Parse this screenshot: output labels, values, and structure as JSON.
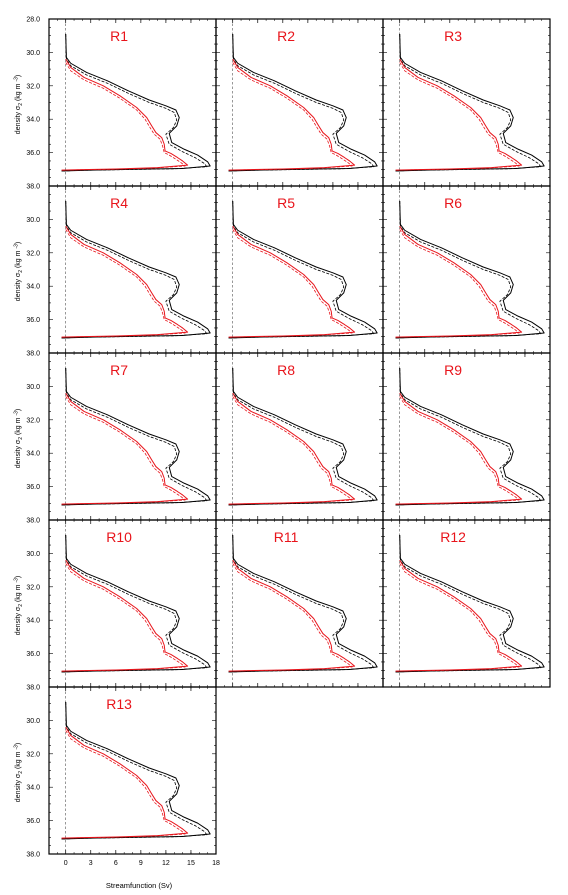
{
  "figure": {
    "xlabel": "Streamfunction (Sv)",
    "ylabel_main": "density σ",
    "ylabel_sub": "2",
    "ylabel_unit": "(kg m",
    "ylabel_exp": "-3",
    "ylabel_close": ")"
  },
  "colors": {
    "black_series": "#000000",
    "red_series": "#e8141b",
    "panel_title": "#e8141b",
    "zero_line": "#555555",
    "axis": "#000000"
  },
  "chart_data": {
    "type": "line",
    "layout": "small multiples, 5 rows x 3 columns (13 panels)",
    "panels": [
      "R1",
      "R2",
      "R3",
      "R4",
      "R5",
      "R6",
      "R7",
      "R8",
      "R9",
      "R10",
      "R11",
      "R12",
      "R13"
    ],
    "xlabel": "Streamfunction (Sv)",
    "ylabel": "density σ2 (kg m-3)",
    "xlim": [
      -2,
      18
    ],
    "ylim": [
      38.0,
      28.0
    ],
    "y_inverted": true,
    "x_ticks": [
      0,
      3,
      6,
      9,
      12,
      15,
      18
    ],
    "y_ticks": [
      28.0,
      30.0,
      32.0,
      34.0,
      36.0,
      38.0
    ],
    "y_tick_labels_first_panel": [
      "28.0",
      "30.0",
      "32.0",
      "34.0",
      "36.0",
      "38.0"
    ],
    "y_tick_labels_other_rows": [
      "",
      "30.0",
      "32.0",
      "34.0",
      "36.0",
      "38.0"
    ],
    "x_tick_labels": [
      "0",
      "3",
      "6",
      "9",
      "12",
      "15",
      "18"
    ],
    "zero_reference_line": {
      "x": 0,
      "style": "dashed"
    },
    "series": [
      {
        "color": "black",
        "style": "solid",
        "points": [
          [
            0.0,
            28.9
          ],
          [
            0.08,
            30.3
          ],
          [
            0.6,
            30.65
          ],
          [
            2.5,
            31.2
          ],
          [
            5.0,
            31.7
          ],
          [
            7.5,
            32.3
          ],
          [
            10.0,
            32.85
          ],
          [
            12.0,
            33.2
          ],
          [
            13.2,
            33.45
          ],
          [
            13.6,
            33.9
          ],
          [
            13.3,
            34.4
          ],
          [
            12.4,
            34.85
          ],
          [
            12.7,
            35.4
          ],
          [
            14.2,
            35.8
          ],
          [
            15.8,
            36.15
          ],
          [
            17.0,
            36.55
          ],
          [
            17.3,
            36.8
          ],
          [
            14.0,
            36.95
          ],
          [
            8.0,
            37.0
          ],
          [
            3.0,
            37.05
          ],
          [
            -0.5,
            37.1
          ]
        ]
      },
      {
        "color": "black",
        "style": "dashed",
        "points": [
          [
            0.0,
            28.9
          ],
          [
            0.08,
            30.4
          ],
          [
            0.6,
            30.8
          ],
          [
            2.5,
            31.35
          ],
          [
            5.0,
            31.85
          ],
          [
            7.5,
            32.45
          ],
          [
            10.0,
            33.0
          ],
          [
            12.0,
            33.35
          ],
          [
            13.0,
            33.6
          ],
          [
            13.3,
            34.05
          ],
          [
            12.9,
            34.5
          ],
          [
            12.0,
            34.9
          ],
          [
            12.4,
            35.5
          ],
          [
            14.0,
            35.95
          ],
          [
            15.5,
            36.3
          ],
          [
            16.6,
            36.65
          ],
          [
            16.9,
            36.85
          ],
          [
            13.0,
            36.97
          ],
          [
            7.0,
            37.02
          ],
          [
            2.0,
            37.06
          ],
          [
            -0.5,
            37.1
          ]
        ]
      },
      {
        "color": "red",
        "style": "solid",
        "points": [
          [
            0.0,
            30.4
          ],
          [
            0.6,
            30.9
          ],
          [
            2.2,
            31.5
          ],
          [
            4.5,
            32.0
          ],
          [
            6.5,
            32.6
          ],
          [
            8.5,
            33.3
          ],
          [
            9.7,
            33.9
          ],
          [
            10.3,
            34.4
          ],
          [
            10.8,
            34.8
          ],
          [
            11.5,
            35.1
          ],
          [
            11.8,
            35.5
          ],
          [
            11.9,
            35.9
          ],
          [
            12.6,
            36.05
          ],
          [
            13.4,
            36.3
          ],
          [
            14.0,
            36.5
          ],
          [
            14.6,
            36.75
          ],
          [
            11.0,
            36.9
          ],
          [
            6.0,
            36.98
          ],
          [
            2.0,
            37.02
          ],
          [
            -0.5,
            37.05
          ]
        ]
      },
      {
        "color": "red",
        "style": "dashed",
        "points": [
          [
            0.0,
            30.6
          ],
          [
            0.6,
            31.1
          ],
          [
            2.2,
            31.65
          ],
          [
            4.5,
            32.15
          ],
          [
            6.5,
            32.75
          ],
          [
            8.5,
            33.45
          ],
          [
            9.5,
            34.0
          ],
          [
            10.1,
            34.5
          ],
          [
            10.6,
            34.9
          ],
          [
            11.3,
            35.2
          ],
          [
            11.6,
            35.6
          ],
          [
            11.8,
            36.0
          ],
          [
            12.4,
            36.15
          ],
          [
            13.2,
            36.4
          ],
          [
            13.8,
            36.6
          ],
          [
            14.3,
            36.8
          ],
          [
            10.5,
            36.93
          ],
          [
            5.5,
            37.0
          ],
          [
            1.5,
            37.03
          ],
          [
            -0.5,
            37.06
          ]
        ]
      }
    ]
  }
}
